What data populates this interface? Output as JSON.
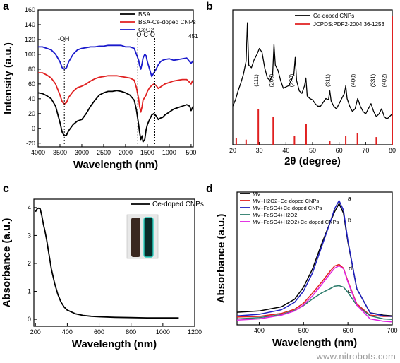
{
  "watermark": "www.nitrobots.com",
  "chart_data": [
    {
      "panel": "a",
      "type": "line",
      "xlabel": "Wavelength (nm)",
      "ylabel": "Intensity (a.u.)",
      "xlim": [
        4000,
        450
      ],
      "ylim": [
        -25,
        160
      ],
      "xticks": [
        4000,
        3500,
        3000,
        2500,
        2000,
        1500,
        1000,
        500
      ],
      "yticks": [
        -20,
        0,
        20,
        40,
        60,
        80,
        100,
        120,
        140,
        160
      ],
      "legend_position": "top-right",
      "series": [
        {
          "name": "BSA",
          "color": "#000000",
          "x": [
            4000,
            3900,
            3800,
            3700,
            3600,
            3500,
            3450,
            3400,
            3350,
            3300,
            3200,
            3100,
            3000,
            2900,
            2800,
            2700,
            2600,
            2500,
            2400,
            2300,
            2200,
            2100,
            2000,
            1900,
            1800,
            1750,
            1700,
            1680,
            1650,
            1620,
            1600,
            1560,
            1530,
            1500,
            1450,
            1400,
            1350,
            1300,
            1250,
            1200,
            1150,
            1100,
            1000,
            900,
            800,
            700,
            600,
            530,
            500,
            470,
            450
          ],
          "y": [
            48,
            47,
            44,
            40,
            30,
            8,
            -5,
            -10,
            -9,
            -3,
            5,
            10,
            12,
            20,
            30,
            38,
            45,
            48,
            50,
            50,
            51,
            50,
            48,
            45,
            38,
            25,
            5,
            -5,
            -15,
            -10,
            -18,
            -15,
            -2,
            5,
            12,
            18,
            20,
            17,
            12,
            14,
            15,
            18,
            22,
            26,
            28,
            30,
            32,
            30,
            24,
            28,
            30
          ]
        },
        {
          "name": "BSA-Ce-doped CNPs",
          "color": "#e02020",
          "x": [
            4000,
            3900,
            3800,
            3700,
            3600,
            3500,
            3450,
            3400,
            3350,
            3300,
            3200,
            3100,
            3000,
            2900,
            2800,
            2700,
            2600,
            2500,
            2400,
            2300,
            2200,
            2100,
            2000,
            1900,
            1800,
            1750,
            1700,
            1680,
            1650,
            1620,
            1600,
            1560,
            1530,
            1500,
            1450,
            1400,
            1350,
            1300,
            1250,
            1200,
            1150,
            1100,
            1000,
            900,
            800,
            700,
            600,
            530,
            500,
            470,
            450
          ],
          "y": [
            75,
            75,
            72,
            68,
            60,
            45,
            36,
            33,
            35,
            42,
            50,
            55,
            57,
            60,
            64,
            67,
            69,
            70,
            71,
            71,
            71,
            70,
            69,
            68,
            65,
            55,
            40,
            30,
            22,
            30,
            38,
            42,
            45,
            50,
            55,
            58,
            60,
            58,
            54,
            56,
            58,
            60,
            62,
            64,
            65,
            66,
            66,
            62,
            60,
            64,
            65
          ]
        },
        {
          "name": "CeO2",
          "color": "#1a1acc",
          "x": [
            4000,
            3900,
            3800,
            3700,
            3600,
            3500,
            3450,
            3400,
            3350,
            3300,
            3200,
            3100,
            3000,
            2900,
            2800,
            2700,
            2600,
            2500,
            2400,
            2300,
            2200,
            2100,
            2000,
            1900,
            1800,
            1750,
            1700,
            1680,
            1650,
            1620,
            1600,
            1560,
            1530,
            1500,
            1450,
            1400,
            1350,
            1300,
            1250,
            1200,
            1150,
            1100,
            1000,
            900,
            800,
            700,
            600,
            530,
            500,
            470,
            450
          ],
          "y": [
            110,
            110,
            108,
            106,
            100,
            90,
            82,
            80,
            82,
            90,
            100,
            106,
            108,
            109,
            110,
            110,
            111,
            111,
            112,
            112,
            112,
            112,
            110,
            110,
            108,
            100,
            92,
            85,
            80,
            88,
            95,
            100,
            98,
            90,
            80,
            70,
            75,
            80,
            86,
            90,
            92,
            93,
            94,
            92,
            93,
            94,
            95,
            90,
            88,
            90,
            92
          ]
        }
      ],
      "annotations": [
        "-OH",
        "O-C-O",
        "451"
      ]
    },
    {
      "panel": "b",
      "type": "line",
      "xlabel": "2θ (degree)",
      "xlim": [
        20,
        80
      ],
      "xticks": [
        20,
        30,
        40,
        50,
        60,
        70,
        80
      ],
      "legend_position": "top-right",
      "series": [
        {
          "name": "Ce-doped CNPs",
          "color": "#000000",
          "x": [
            20,
            21,
            22,
            23,
            24,
            25,
            25.5,
            26,
            27,
            28,
            29,
            30,
            31,
            32,
            33,
            34,
            35,
            35.5,
            36,
            37,
            38,
            39,
            40,
            41,
            42,
            43,
            43.5,
            44,
            45,
            46,
            47,
            47.5,
            48,
            49,
            50,
            51,
            52,
            53,
            54,
            55,
            56,
            56.5,
            57,
            58,
            59,
            60,
            61,
            62,
            62.5,
            63,
            64,
            65,
            66,
            67,
            68,
            69,
            70,
            71,
            72,
            73,
            74,
            75,
            76,
            77,
            78,
            79,
            80
          ],
          "y": [
            0.3,
            0.35,
            0.42,
            0.48,
            0.55,
            0.65,
            0.95,
            0.62,
            0.6,
            0.66,
            0.7,
            0.75,
            0.72,
            0.6,
            0.52,
            0.5,
            0.55,
            0.78,
            0.62,
            0.58,
            0.5,
            0.44,
            0.45,
            0.46,
            0.5,
            0.55,
            0.68,
            0.5,
            0.42,
            0.4,
            0.46,
            0.52,
            0.38,
            0.36,
            0.35,
            0.32,
            0.3,
            0.3,
            0.33,
            0.36,
            0.35,
            0.42,
            0.34,
            0.3,
            0.28,
            0.32,
            0.36,
            0.4,
            0.46,
            0.36,
            0.3,
            0.26,
            0.28,
            0.36,
            0.3,
            0.26,
            0.24,
            0.28,
            0.32,
            0.26,
            0.22,
            0.24,
            0.28,
            0.22,
            0.2,
            0.22,
            0.24
          ]
        },
        {
          "name": "JCPDS:PDF2-2004 36-1253",
          "color": "#e02020",
          "type": "stick",
          "x": [
            21.3,
            25.0,
            29.6,
            35.2,
            43.2,
            47.6,
            56.5,
            62.5,
            66.9,
            74.0,
            80.0
          ],
          "y": [
            0.05,
            0.04,
            0.28,
            0.22,
            0.07,
            0.16,
            0.03,
            0.07,
            0.09,
            0.06,
            1.0
          ]
        }
      ],
      "peak_labels": [
        {
          "label": "(111)",
          "x": 29.6
        },
        {
          "label": "(200)",
          "x": 35.2
        },
        {
          "label": "(220)",
          "x": 42.8
        },
        {
          "label": "(311)",
          "x": 56.5
        },
        {
          "label": "(400)",
          "x": 66.0
        },
        {
          "label": "(331)",
          "x": 73.5
        },
        {
          "label": "(402)",
          "x": 77.8
        }
      ]
    },
    {
      "panel": "c",
      "type": "line",
      "xlabel": "Wavelength (nm)",
      "ylabel": "Absorbance (a.u.)",
      "xlim": [
        190,
        1200
      ],
      "ylim": [
        -0.25,
        4.3
      ],
      "xticks": [
        200,
        400,
        600,
        800,
        1000,
        1200
      ],
      "yticks": [
        0,
        1,
        2,
        3,
        4
      ],
      "legend_position": "top-right",
      "series": [
        {
          "name": "Ce-doped CNPs",
          "color": "#000000",
          "x": [
            200,
            210,
            220,
            230,
            240,
            250,
            260,
            270,
            280,
            290,
            300,
            320,
            340,
            360,
            380,
            400,
            450,
            500,
            550,
            600,
            700,
            800,
            900,
            1000,
            1100
          ],
          "y": [
            3.85,
            3.95,
            3.98,
            3.95,
            3.7,
            3.4,
            3.15,
            2.85,
            2.5,
            2.15,
            1.8,
            1.3,
            0.9,
            0.62,
            0.44,
            0.33,
            0.2,
            0.14,
            0.11,
            0.09,
            0.07,
            0.06,
            0.05,
            0.05,
            0.05
          ]
        }
      ],
      "inset": "photo of two vials (dark brown and fluorescent green)"
    },
    {
      "panel": "d",
      "type": "line",
      "xlabel": "Wavelength (nm)",
      "ylabel": "Absorbance (a.u.)",
      "xlim": [
        350,
        700
      ],
      "ylim": [
        0,
        4.4
      ],
      "xticks": [
        400,
        500,
        600,
        700
      ],
      "legend_position": "top-left",
      "series": [
        {
          "name": "MV",
          "color": "#000000",
          "x": [
            350,
            400,
            450,
            480,
            500,
            520,
            540,
            560,
            570,
            580,
            590,
            600,
            620,
            650,
            680,
            700
          ],
          "y": [
            0.42,
            0.46,
            0.6,
            0.85,
            1.25,
            1.85,
            2.65,
            3.4,
            3.75,
            4.02,
            3.7,
            2.75,
            1.2,
            0.4,
            0.32,
            0.3
          ]
        },
        {
          "name": "MV+H2O2+Ce-doped CNPs",
          "color": "#e02020",
          "x": [
            350,
            400,
            450,
            480,
            500,
            520,
            540,
            560,
            570,
            580,
            590,
            600,
            620,
            650,
            680,
            700
          ],
          "y": [
            0.26,
            0.28,
            0.38,
            0.52,
            0.72,
            1.05,
            1.4,
            1.78,
            1.95,
            2.0,
            1.88,
            1.45,
            0.7,
            0.32,
            0.28,
            0.28
          ]
        },
        {
          "name": "MV+FeSO4+Ce-doped CNPs",
          "color": "#2020c0",
          "x": [
            350,
            400,
            450,
            480,
            500,
            520,
            540,
            560,
            570,
            580,
            590,
            600,
            620,
            650,
            680,
            700
          ],
          "y": [
            0.3,
            0.35,
            0.5,
            0.75,
            1.12,
            1.72,
            2.55,
            3.4,
            3.85,
            4.12,
            3.8,
            2.8,
            1.2,
            0.4,
            0.3,
            0.28
          ]
        },
        {
          "name": "MV+FeSO4+H2O2",
          "color": "#2a7a6a",
          "x": [
            350,
            400,
            450,
            480,
            500,
            520,
            540,
            560,
            570,
            580,
            590,
            600,
            620,
            650,
            680,
            700
          ],
          "y": [
            0.2,
            0.24,
            0.34,
            0.48,
            0.64,
            0.86,
            1.05,
            1.2,
            1.28,
            1.3,
            1.25,
            1.08,
            0.65,
            0.3,
            0.2,
            0.18
          ]
        },
        {
          "name": "MV+FeSO4+H2O2+Ce-doped CNPs",
          "color": "#e020e0",
          "x": [
            350,
            400,
            450,
            480,
            500,
            520,
            540,
            560,
            570,
            580,
            590,
            600,
            620,
            650,
            680,
            700
          ],
          "y": [
            0.16,
            0.2,
            0.32,
            0.46,
            0.66,
            0.96,
            1.32,
            1.7,
            1.88,
            1.96,
            1.86,
            1.42,
            0.66,
            0.2,
            0.12,
            0.1
          ]
        }
      ],
      "curve_labels": [
        {
          "label": "a",
          "x": 590,
          "y": 4.12
        },
        {
          "label": "b",
          "x": 590,
          "y": 3.4
        },
        {
          "label": "d",
          "x": 592,
          "y": 1.8
        },
        {
          "label": "c",
          "x": 590,
          "y": 1.05
        }
      ]
    }
  ]
}
